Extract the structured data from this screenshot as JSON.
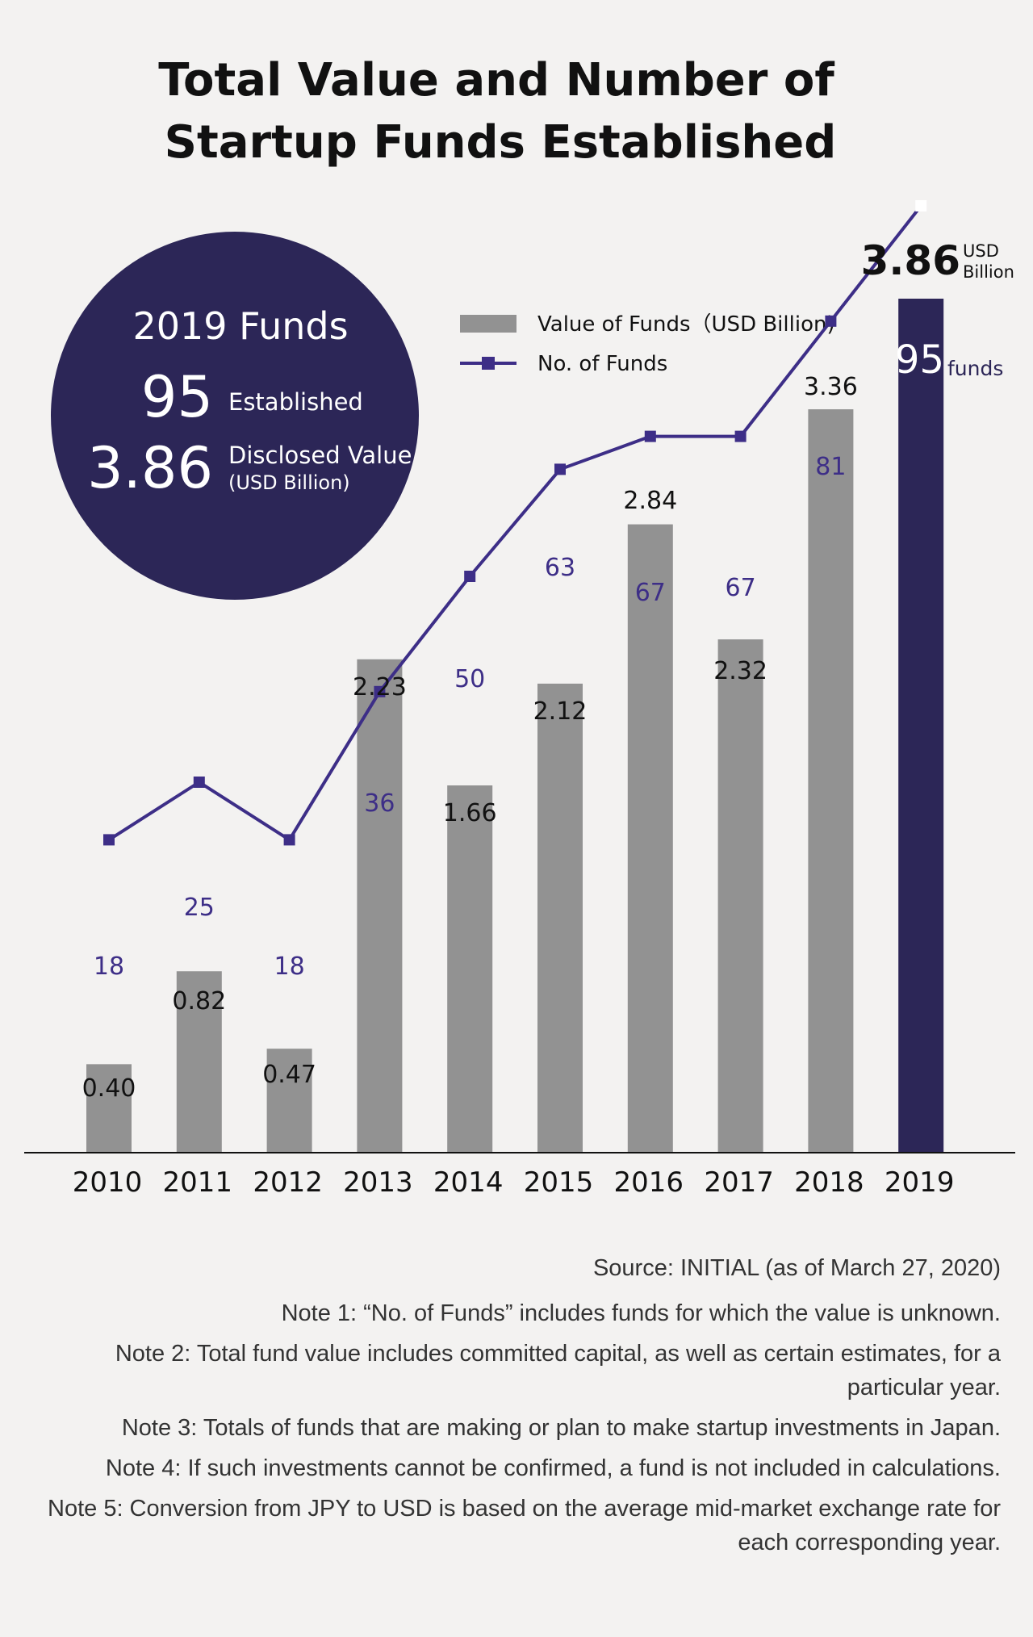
{
  "title_line1": "Total Value and Number of",
  "title_line2": "Startup Funds Established",
  "highlight": {
    "heading": "2019 Funds",
    "count": "95",
    "count_label": "Established",
    "value": "3.86",
    "value_label": "Disclosed Value",
    "value_unit": "(USD Billion)"
  },
  "legend": {
    "bar_label": "Value of Funds（USD Billion)",
    "line_label": "No. of Funds"
  },
  "last_bar_unit_1": "USD",
  "last_bar_unit_2": "Billion",
  "last_point_unit": "funds",
  "colors": {
    "bar": "#929292",
    "bar_highlight": "#2c2657",
    "line": "#3d2e87",
    "circle": "#2c2657",
    "background": "#f3f2f1"
  },
  "chart_data": {
    "type": "bar",
    "categories": [
      "2010",
      "2011",
      "2012",
      "2013",
      "2014",
      "2015",
      "2016",
      "2017",
      "2018",
      "2019"
    ],
    "series": [
      {
        "name": "Value of Funds（USD Billion)",
        "type": "bar",
        "values": [
          0.4,
          0.82,
          0.47,
          2.23,
          1.66,
          2.12,
          2.84,
          2.32,
          3.36,
          3.86
        ],
        "labels": [
          "0.40",
          "0.82",
          "0.47",
          "2.23",
          "1.66",
          "2.12",
          "2.84",
          "2.32",
          "3.36",
          "3.86"
        ]
      },
      {
        "name": "No. of Funds",
        "type": "line",
        "values": [
          18,
          25,
          18,
          36,
          50,
          63,
          67,
          67,
          81,
          95
        ],
        "labels": [
          "18",
          "25",
          "18",
          "36",
          "50",
          "63",
          "67",
          "67",
          "81",
          "95"
        ]
      }
    ],
    "title": "Total Value and Number of Startup Funds Established",
    "xlabel": "",
    "ylabel": "",
    "ylim": [
      0,
      4.0
    ],
    "y2lim": [
      0,
      100
    ],
    "grid": false,
    "legend_position": "top-center"
  },
  "notes": {
    "source": "Source: INITIAL (as of March 27, 2020)",
    "note1": "Note 1: “No. of Funds” includes funds for which the value is unknown.",
    "note2": "Note 2: Total fund value includes committed capital, as well as certain estimates, for a particular year.",
    "note3": "Note 3: Totals of funds that are making or plan to make startup investments in Japan.",
    "note4": "Note 4: If such investments cannot be confirmed, a fund is not included in calculations.",
    "note5": "Note 5: Conversion from JPY to USD is based on the average mid-market exchange rate for each corresponding year."
  }
}
